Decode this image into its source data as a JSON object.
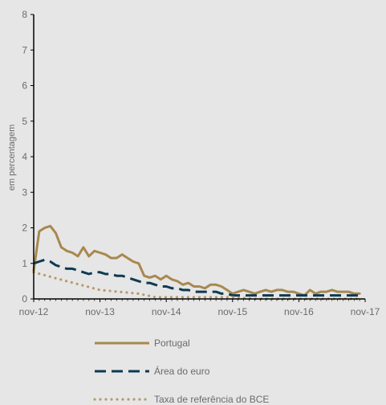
{
  "chart_data": {
    "type": "line",
    "ylabel": "em percentagem",
    "ylim": [
      0,
      8
    ],
    "yticks": [
      "0",
      "1",
      "2",
      "3",
      "4",
      "5",
      "6",
      "7",
      "8"
    ],
    "xlim": [
      "2012-11",
      "2017-11"
    ],
    "xticks": [
      "nov-12",
      "nov-13",
      "nov-14",
      "nov-15",
      "nov-16",
      "nov-17"
    ],
    "grid": false,
    "legend_position": "bottom",
    "series": [
      {
        "name": "Portugal",
        "color": "#a8884f",
        "style": "solid",
        "x": [
          "2012-11",
          "2012-12",
          "2013-01",
          "2013-02",
          "2013-03",
          "2013-04",
          "2013-05",
          "2013-06",
          "2013-07",
          "2013-08",
          "2013-09",
          "2013-10",
          "2013-11",
          "2013-12",
          "2014-01",
          "2014-02",
          "2014-03",
          "2014-04",
          "2014-05",
          "2014-06",
          "2014-07",
          "2014-08",
          "2014-09",
          "2014-10",
          "2014-11",
          "2014-12",
          "2015-01",
          "2015-02",
          "2015-03",
          "2015-04",
          "2015-05",
          "2015-06",
          "2015-07",
          "2015-08",
          "2015-09",
          "2015-10",
          "2015-11",
          "2015-12",
          "2016-01",
          "2016-02",
          "2016-03",
          "2016-04",
          "2016-05",
          "2016-06",
          "2016-07",
          "2016-08",
          "2016-09",
          "2016-10",
          "2016-11",
          "2016-12",
          "2017-01",
          "2017-02",
          "2017-03",
          "2017-04",
          "2017-05",
          "2017-06",
          "2017-07",
          "2017-08",
          "2017-09",
          "2017-10"
        ],
        "values": [
          0.8,
          1.9,
          2.0,
          2.05,
          1.85,
          1.45,
          1.35,
          1.3,
          1.2,
          1.45,
          1.2,
          1.35,
          1.3,
          1.25,
          1.15,
          1.15,
          1.25,
          1.15,
          1.05,
          1.0,
          0.65,
          0.6,
          0.65,
          0.55,
          0.65,
          0.55,
          0.5,
          0.4,
          0.45,
          0.35,
          0.35,
          0.3,
          0.4,
          0.4,
          0.35,
          0.25,
          0.15,
          0.2,
          0.25,
          0.2,
          0.15,
          0.2,
          0.25,
          0.2,
          0.25,
          0.25,
          0.2,
          0.2,
          0.15,
          0.1,
          0.25,
          0.15,
          0.2,
          0.2,
          0.25,
          0.2,
          0.2,
          0.2,
          0.15,
          0.15
        ]
      },
      {
        "name": "Área do euro",
        "color": "#0e3a52",
        "style": "dashed",
        "x": [
          "2012-11",
          "2012-12",
          "2013-01",
          "2013-02",
          "2013-03",
          "2013-04",
          "2013-05",
          "2013-06",
          "2013-07",
          "2013-08",
          "2013-09",
          "2013-10",
          "2013-11",
          "2013-12",
          "2014-01",
          "2014-02",
          "2014-03",
          "2014-04",
          "2014-05",
          "2014-06",
          "2014-07",
          "2014-08",
          "2014-09",
          "2014-10",
          "2014-11",
          "2014-12",
          "2015-01",
          "2015-02",
          "2015-03",
          "2015-04",
          "2015-05",
          "2015-06",
          "2015-07",
          "2015-08",
          "2015-09",
          "2015-10",
          "2015-11",
          "2015-12",
          "2016-01",
          "2016-02",
          "2016-03",
          "2016-04",
          "2016-05",
          "2016-06",
          "2016-07",
          "2016-08",
          "2016-09",
          "2016-10",
          "2016-11",
          "2016-12",
          "2017-01",
          "2017-02",
          "2017-03",
          "2017-04",
          "2017-05",
          "2017-06",
          "2017-07",
          "2017-08",
          "2017-09",
          "2017-10"
        ],
        "values": [
          1.0,
          1.05,
          1.1,
          1.05,
          0.95,
          0.9,
          0.85,
          0.85,
          0.8,
          0.75,
          0.7,
          0.75,
          0.75,
          0.7,
          0.7,
          0.65,
          0.65,
          0.6,
          0.55,
          0.5,
          0.45,
          0.45,
          0.4,
          0.35,
          0.35,
          0.3,
          0.3,
          0.25,
          0.25,
          0.2,
          0.2,
          0.2,
          0.2,
          0.2,
          0.15,
          0.15,
          0.1,
          0.1,
          0.1,
          0.1,
          0.1,
          0.1,
          0.1,
          0.1,
          0.1,
          0.1,
          0.1,
          0.1,
          0.1,
          0.1,
          0.1,
          0.1,
          0.1,
          0.1,
          0.1,
          0.1,
          0.1,
          0.1,
          0.1,
          0.1
        ]
      },
      {
        "name": "Taxa de referência do BCE",
        "color": "#b79a6a",
        "style": "dotted",
        "x": [
          "2012-11",
          "2013-05",
          "2013-11",
          "2014-06",
          "2014-09",
          "2015-11",
          "2016-03",
          "2017-10"
        ],
        "values": [
          0.75,
          0.5,
          0.25,
          0.15,
          0.05,
          0.05,
          0.0,
          0.0
        ]
      }
    ]
  }
}
